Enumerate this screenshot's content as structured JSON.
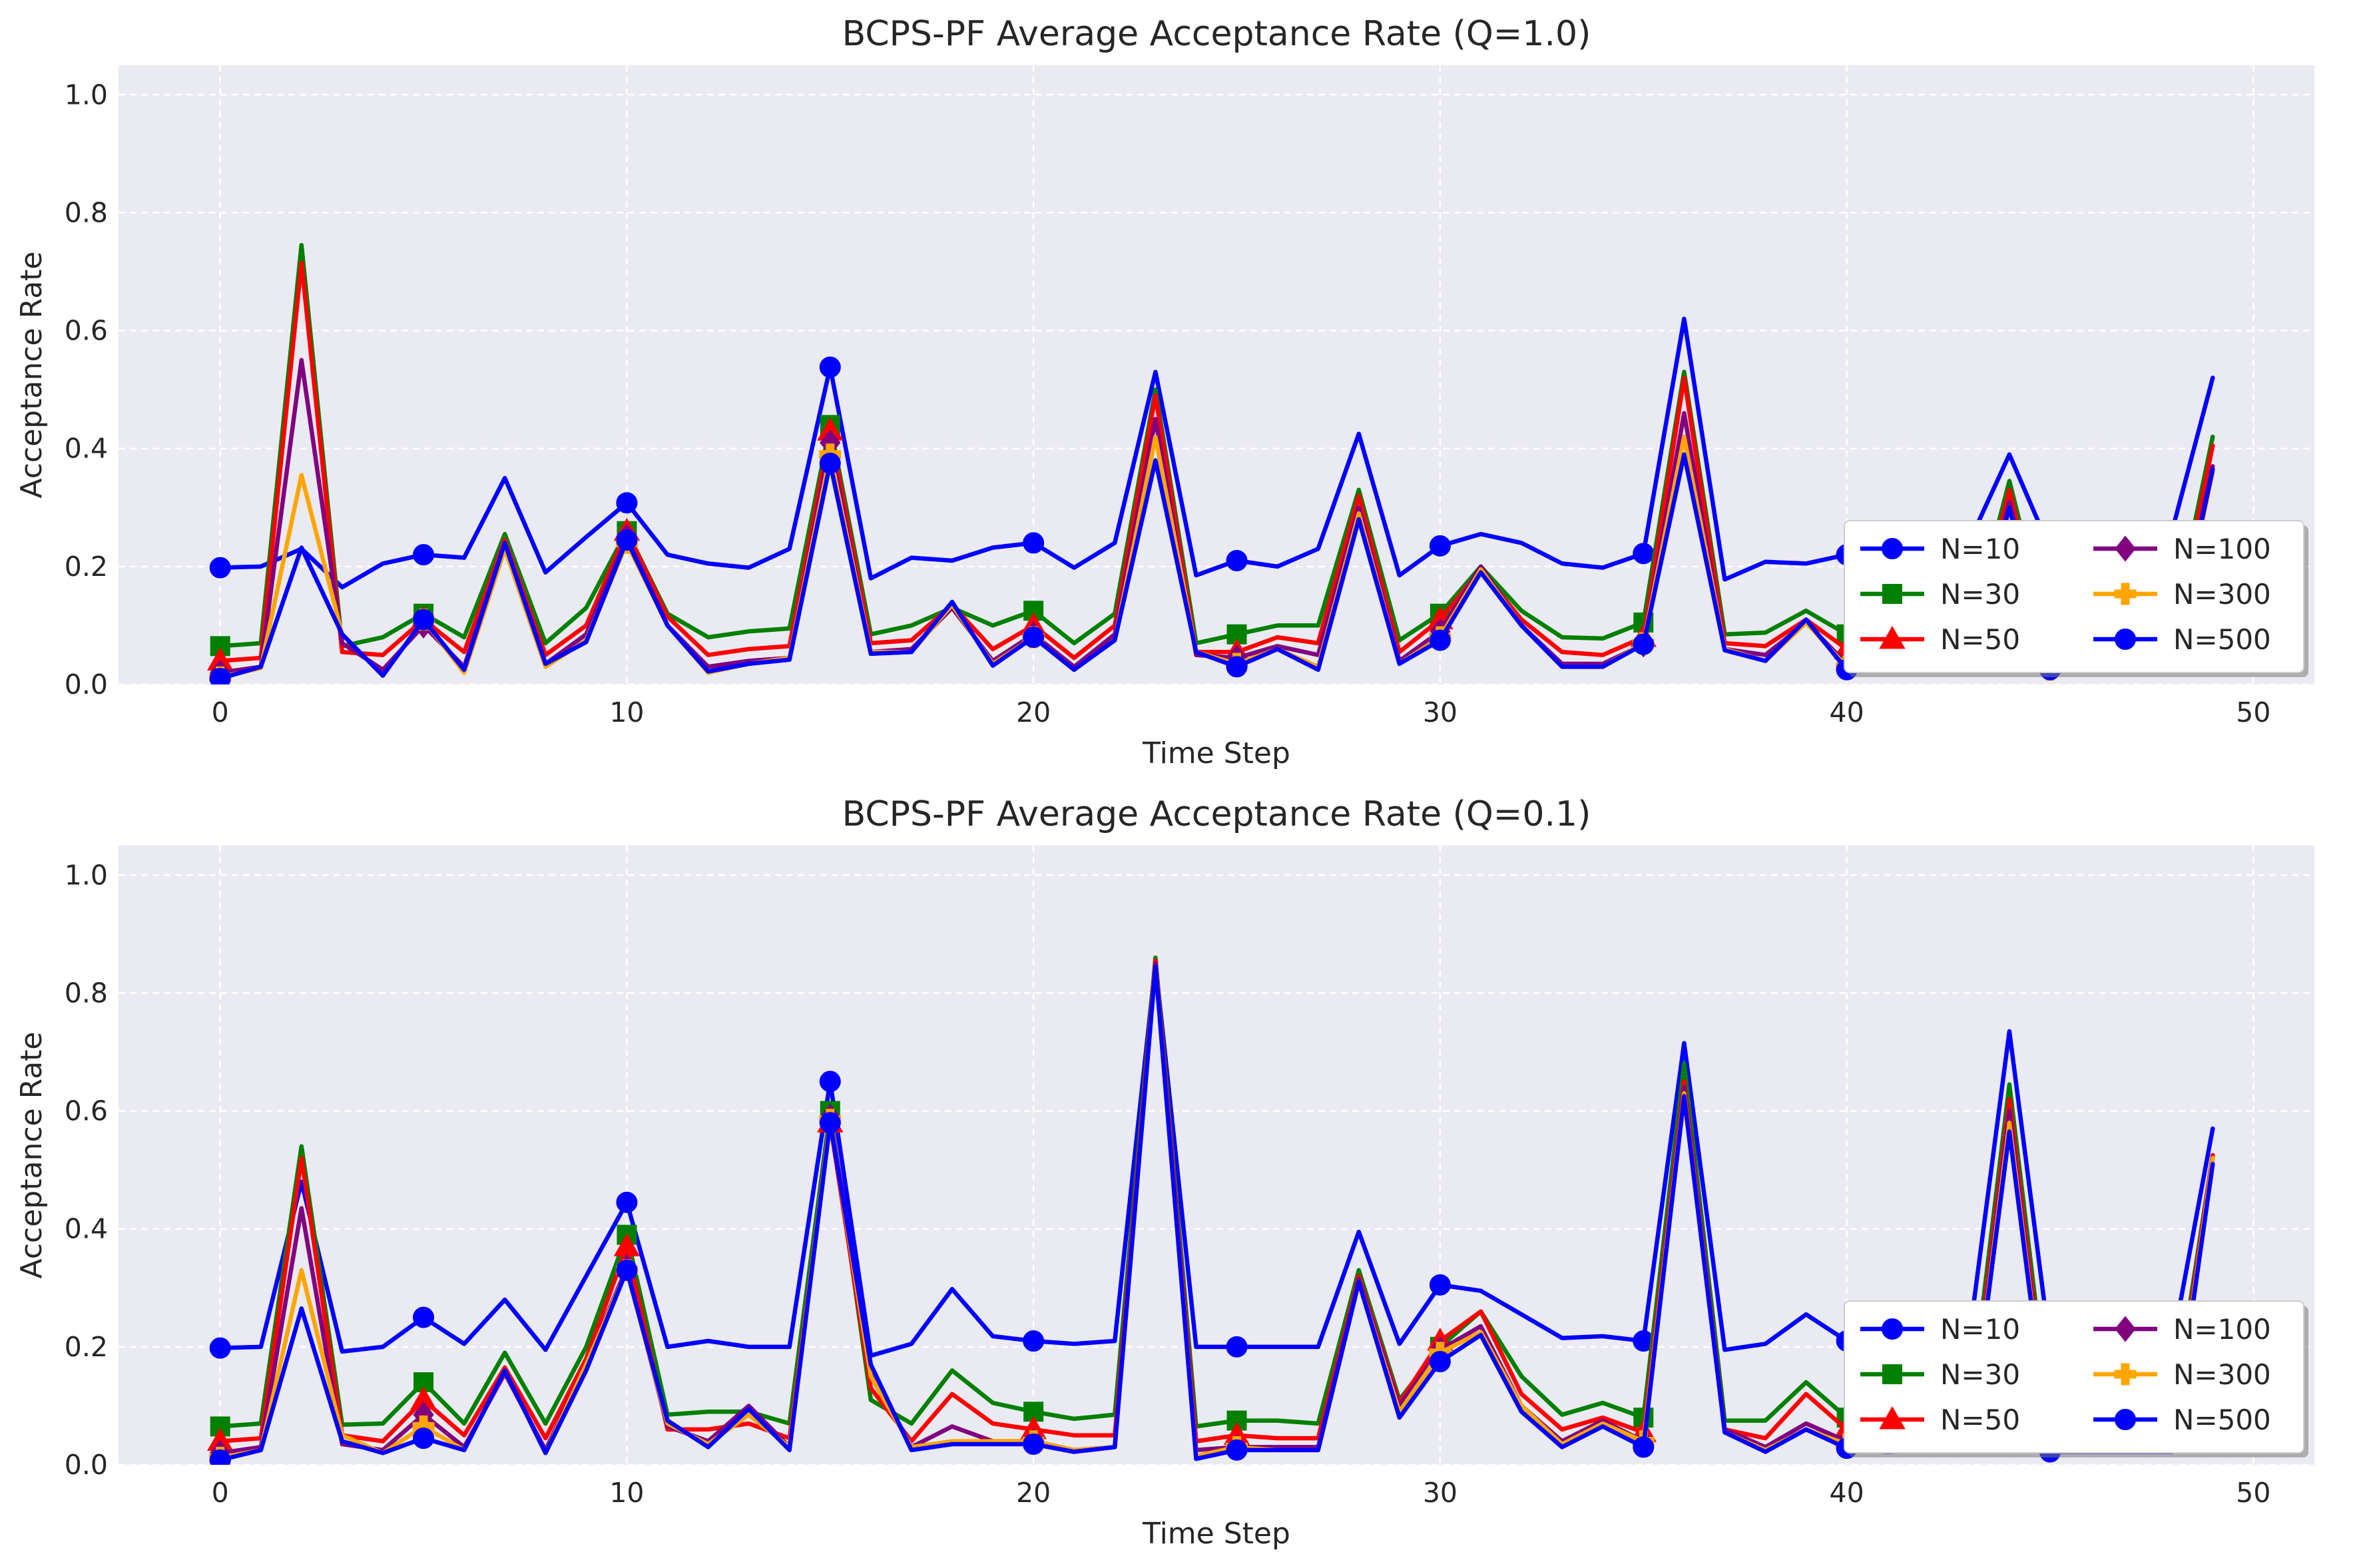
{
  "colors": {
    "plot_background": "#eaeaf2",
    "grid": "#ffffff",
    "N=10": "#0000ff",
    "N=30": "#008000",
    "N=50": "#ff0000",
    "N=100": "#800080",
    "N=300": "#ffa500",
    "N=500": "#0000ff"
  },
  "chart_data": [
    {
      "type": "line",
      "title": "BCPS-PF Average Acceptance Rate (Q=1.0)",
      "xlabel": "Time Step",
      "ylabel": "Acceptance Rate",
      "xlim": [
        -2.5,
        51.5
      ],
      "ylim": [
        0,
        1.05
      ],
      "xticks": [
        "0",
        "10",
        "20",
        "30",
        "40",
        "50"
      ],
      "yticks": [
        "0.0",
        "0.2",
        "0.4",
        "0.6",
        "0.8",
        "1.0"
      ],
      "grid": true,
      "legend": "lower-right",
      "marker_every": 5,
      "series": [
        {
          "name": "N=10",
          "color": "#0000ff",
          "marker": "circle",
          "values": [
            0.198,
            0.2,
            0.23,
            0.165,
            0.205,
            0.22,
            0.215,
            0.35,
            0.19,
            0.25,
            0.308,
            0.22,
            0.205,
            0.198,
            0.23,
            0.538,
            0.18,
            0.215,
            0.21,
            0.232,
            0.24,
            0.198,
            0.24,
            0.53,
            0.185,
            0.21,
            0.2,
            0.23,
            0.425,
            0.185,
            0.235,
            0.255,
            0.24,
            0.205,
            0.198,
            0.222,
            0.62,
            0.178,
            0.208,
            0.205,
            0.22,
            0.205,
            0.22,
            0.24,
            0.39,
            0.23,
            0.24,
            0.25,
            0.26,
            0.52
          ]
        },
        {
          "name": "N=30",
          "color": "#008000",
          "marker": "square",
          "values": [
            0.065,
            0.07,
            0.745,
            0.065,
            0.08,
            0.12,
            0.08,
            0.255,
            0.07,
            0.13,
            0.26,
            0.12,
            0.08,
            0.09,
            0.095,
            0.44,
            0.085,
            0.1,
            0.13,
            0.1,
            0.125,
            0.07,
            0.12,
            0.5,
            0.07,
            0.085,
            0.1,
            0.1,
            0.33,
            0.075,
            0.12,
            0.2,
            0.125,
            0.08,
            0.078,
            0.105,
            0.53,
            0.085,
            0.088,
            0.125,
            0.085,
            0.07,
            0.07,
            0.08,
            0.345,
            0.07,
            0.07,
            0.08,
            0.09,
            0.42
          ]
        },
        {
          "name": "N=50",
          "color": "#ff0000",
          "marker": "triangle",
          "values": [
            0.04,
            0.045,
            0.715,
            0.055,
            0.05,
            0.11,
            0.055,
            0.245,
            0.05,
            0.1,
            0.26,
            0.115,
            0.05,
            0.06,
            0.065,
            0.43,
            0.07,
            0.075,
            0.135,
            0.06,
            0.1,
            0.045,
            0.1,
            0.49,
            0.055,
            0.055,
            0.08,
            0.07,
            0.32,
            0.055,
            0.11,
            0.195,
            0.11,
            0.055,
            0.05,
            0.08,
            0.52,
            0.07,
            0.065,
            0.11,
            0.06,
            0.05,
            0.05,
            0.06,
            0.33,
            0.05,
            0.05,
            0.06,
            0.07,
            0.405
          ]
        },
        {
          "name": "N=100",
          "color": "#800080",
          "marker": "diamond",
          "values": [
            0.02,
            0.03,
            0.55,
            0.07,
            0.025,
            0.1,
            0.03,
            0.24,
            0.035,
            0.085,
            0.25,
            0.1,
            0.03,
            0.04,
            0.045,
            0.41,
            0.055,
            0.06,
            0.13,
            0.04,
            0.085,
            0.03,
            0.085,
            0.45,
            0.05,
            0.045,
            0.065,
            0.05,
            0.3,
            0.04,
            0.09,
            0.2,
            0.1,
            0.035,
            0.035,
            0.068,
            0.46,
            0.06,
            0.05,
            0.105,
            0.035,
            0.03,
            0.04,
            0.04,
            0.31,
            0.03,
            0.03,
            0.04,
            0.05,
            0.37
          ]
        },
        {
          "name": "N=300",
          "color": "#ffa500",
          "marker": "plus",
          "values": [
            0.012,
            0.028,
            0.355,
            0.085,
            0.015,
            0.11,
            0.02,
            0.23,
            0.03,
            0.075,
            0.24,
            0.1,
            0.02,
            0.035,
            0.045,
            0.39,
            0.055,
            0.055,
            0.135,
            0.035,
            0.08,
            0.025,
            0.075,
            0.42,
            0.055,
            0.035,
            0.06,
            0.03,
            0.29,
            0.035,
            0.08,
            0.195,
            0.1,
            0.03,
            0.03,
            0.07,
            0.42,
            0.06,
            0.04,
            0.105,
            0.03,
            0.025,
            0.03,
            0.035,
            0.3,
            0.025,
            0.025,
            0.03,
            0.04,
            0.36
          ]
        },
        {
          "name": "N=500",
          "color": "#0000ff",
          "marker": "circle",
          "values": [
            0.01,
            0.03,
            0.232,
            0.085,
            0.015,
            0.11,
            0.025,
            0.24,
            0.035,
            0.072,
            0.245,
            0.1,
            0.022,
            0.035,
            0.042,
            0.375,
            0.052,
            0.055,
            0.14,
            0.032,
            0.08,
            0.025,
            0.075,
            0.38,
            0.055,
            0.03,
            0.06,
            0.025,
            0.28,
            0.035,
            0.075,
            0.19,
            0.1,
            0.03,
            0.03,
            0.068,
            0.39,
            0.058,
            0.04,
            0.11,
            0.025,
            0.03,
            0.03,
            0.035,
            0.3,
            0.025,
            0.025,
            0.035,
            0.04,
            0.365
          ]
        }
      ]
    },
    {
      "type": "line",
      "title": "BCPS-PF Average Acceptance Rate (Q=0.1)",
      "xlabel": "Time Step",
      "ylabel": "Acceptance Rate",
      "xlim": [
        -2.5,
        51.5
      ],
      "ylim": [
        0,
        1.05
      ],
      "xticks": [
        "0",
        "10",
        "20",
        "30",
        "40",
        "50"
      ],
      "yticks": [
        "0.0",
        "0.2",
        "0.4",
        "0.6",
        "0.8",
        "1.0"
      ],
      "grid": true,
      "legend": "lower-right",
      "marker_every": 5,
      "series": [
        {
          "name": "N=10",
          "color": "#0000ff",
          "marker": "circle",
          "values": [
            0.198,
            0.2,
            0.48,
            0.192,
            0.2,
            0.25,
            0.205,
            0.28,
            0.195,
            0.32,
            0.445,
            0.2,
            0.21,
            0.2,
            0.2,
            0.65,
            0.185,
            0.205,
            0.298,
            0.218,
            0.21,
            0.205,
            0.21,
            0.85,
            0.2,
            0.2,
            0.2,
            0.2,
            0.395,
            0.205,
            0.305,
            0.295,
            0.255,
            0.215,
            0.218,
            0.21,
            0.715,
            0.195,
            0.205,
            0.255,
            0.21,
            0.2,
            0.2,
            0.21,
            0.735,
            0.2,
            0.2,
            0.2,
            0.2,
            0.57
          ]
        },
        {
          "name": "N=30",
          "color": "#008000",
          "marker": "square",
          "values": [
            0.065,
            0.07,
            0.54,
            0.068,
            0.07,
            0.14,
            0.07,
            0.19,
            0.07,
            0.2,
            0.39,
            0.085,
            0.09,
            0.09,
            0.07,
            0.6,
            0.11,
            0.07,
            0.16,
            0.105,
            0.09,
            0.078,
            0.085,
            0.86,
            0.065,
            0.075,
            0.075,
            0.07,
            0.33,
            0.11,
            0.2,
            0.26,
            0.15,
            0.085,
            0.105,
            0.08,
            0.68,
            0.075,
            0.075,
            0.14,
            0.08,
            0.07,
            0.07,
            0.075,
            0.645,
            0.07,
            0.07,
            0.07,
            0.075,
            0.525
          ]
        },
        {
          "name": "N=50",
          "color": "#ff0000",
          "marker": "triangle",
          "values": [
            0.04,
            0.045,
            0.52,
            0.05,
            0.04,
            0.11,
            0.05,
            0.165,
            0.045,
            0.18,
            0.37,
            0.06,
            0.06,
            0.07,
            0.045,
            0.58,
            0.13,
            0.04,
            0.12,
            0.07,
            0.06,
            0.05,
            0.05,
            0.855,
            0.04,
            0.05,
            0.045,
            0.045,
            0.32,
            0.105,
            0.21,
            0.26,
            0.12,
            0.06,
            0.08,
            0.055,
            0.65,
            0.06,
            0.045,
            0.12,
            0.06,
            0.045,
            0.045,
            0.05,
            0.62,
            0.045,
            0.045,
            0.045,
            0.05,
            0.525
          ]
        },
        {
          "name": "N=100",
          "color": "#800080",
          "marker": "diamond",
          "values": [
            0.02,
            0.03,
            0.435,
            0.035,
            0.025,
            0.085,
            0.03,
            0.155,
            0.025,
            0.17,
            0.335,
            0.065,
            0.04,
            0.1,
            0.03,
            0.59,
            0.16,
            0.03,
            0.065,
            0.04,
            0.04,
            0.025,
            0.03,
            0.85,
            0.025,
            0.03,
            0.03,
            0.03,
            0.315,
            0.1,
            0.195,
            0.235,
            0.1,
            0.04,
            0.075,
            0.04,
            0.64,
            0.06,
            0.03,
            0.07,
            0.04,
            0.03,
            0.03,
            0.035,
            0.6,
            0.03,
            0.03,
            0.03,
            0.03,
            0.52
          ]
        },
        {
          "name": "N=300",
          "color": "#ffa500",
          "marker": "plus",
          "values": [
            0.012,
            0.025,
            0.33,
            0.05,
            0.02,
            0.065,
            0.025,
            0.16,
            0.02,
            0.17,
            0.33,
            0.07,
            0.035,
            0.085,
            0.03,
            0.585,
            0.15,
            0.03,
            0.04,
            0.04,
            0.04,
            0.025,
            0.03,
            0.845,
            0.015,
            0.03,
            0.025,
            0.025,
            0.31,
            0.09,
            0.19,
            0.225,
            0.1,
            0.035,
            0.07,
            0.04,
            0.63,
            0.055,
            0.025,
            0.06,
            0.035,
            0.025,
            0.025,
            0.03,
            0.58,
            0.025,
            0.025,
            0.025,
            0.025,
            0.52
          ]
        },
        {
          "name": "N=500",
          "color": "#0000ff",
          "marker": "circle",
          "values": [
            0.008,
            0.025,
            0.265,
            0.04,
            0.02,
            0.045,
            0.025,
            0.16,
            0.02,
            0.16,
            0.33,
            0.075,
            0.03,
            0.095,
            0.025,
            0.58,
            0.17,
            0.025,
            0.035,
            0.035,
            0.035,
            0.022,
            0.03,
            0.845,
            0.01,
            0.025,
            0.025,
            0.025,
            0.31,
            0.08,
            0.175,
            0.22,
            0.09,
            0.03,
            0.065,
            0.03,
            0.625,
            0.055,
            0.022,
            0.06,
            0.028,
            0.022,
            0.025,
            0.028,
            0.565,
            0.022,
            0.022,
            0.022,
            0.022,
            0.51
          ]
        }
      ]
    }
  ]
}
